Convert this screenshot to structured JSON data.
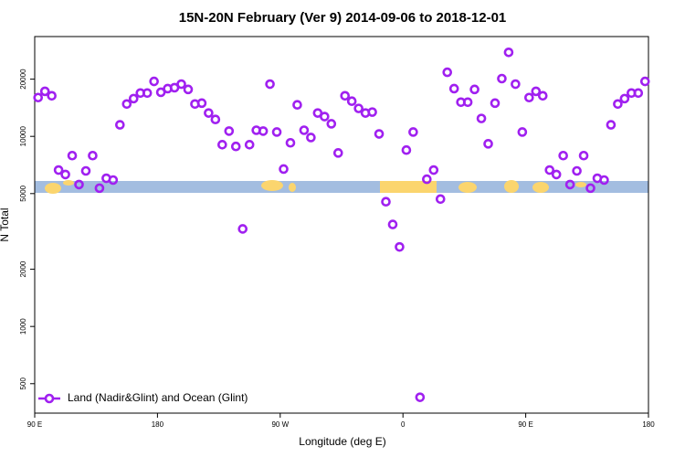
{
  "chart_data": {
    "type": "scatter",
    "title": "15N-20N February (Ver 9)   2014-09-06 to 2018-12-01",
    "x_label": "Longitude (deg E)",
    "y_label": "N Total",
    "xlim": [
      90,
      540
    ],
    "xticks": [
      {
        "value": 90,
        "label": "90 E"
      },
      {
        "value": 180,
        "label": "180"
      },
      {
        "value": 270,
        "label": "90 W"
      },
      {
        "value": 360,
        "label": "0"
      },
      {
        "value": 450,
        "label": "90 E"
      },
      {
        "value": 540,
        "label": "180"
      }
    ],
    "ylim": [
      350,
      33500
    ],
    "y_log": true,
    "yticks": [
      500,
      1000,
      2000,
      5000,
      10000,
      20000
    ],
    "legend_position": "bottom-left",
    "series": [
      {
        "name": "Land (Nadir&Glint) and Ocean (Glint)",
        "color": "#a020f0",
        "x": [
          92.5,
          97.5,
          102.5,
          107.5,
          112.5,
          117.5,
          122.5,
          127.5,
          132.5,
          137.5,
          142.5,
          147.5,
          152.5,
          157.5,
          162.5,
          167.5,
          172.5,
          177.5,
          182.5,
          187.5,
          192.5,
          197.5,
          202.5,
          207.5,
          212.5,
          217.5,
          222.5,
          227.5,
          232.5,
          237.5,
          242.5,
          247.5,
          252.5,
          257.5,
          262.5,
          267.5,
          272.5,
          277.5,
          282.5,
          287.5,
          292.5,
          297.5,
          302.5,
          307.5,
          312.5,
          317.5,
          322.5,
          327.5,
          332.5,
          337.5,
          342.5,
          347.5,
          352.5,
          357.5,
          362.5,
          367.5,
          372.5,
          377.5,
          382.5,
          387.5,
          392.5,
          397.5,
          402.5,
          407.5,
          412.5,
          417.5,
          422.5,
          427.5,
          432.5,
          437.5,
          442.5,
          447.5,
          452.5,
          457.5,
          462.5,
          467.5,
          472.5,
          477.5,
          482.5,
          487.5,
          492.5,
          497.5,
          502.5,
          507.5,
          512.5,
          517.5,
          522.5,
          527.5,
          532.5,
          537.5
        ],
        "values": [
          16000,
          17260,
          16350,
          6650,
          6300,
          7920,
          5580,
          6580,
          7920,
          5340,
          6020,
          5890,
          11500,
          14800,
          15800,
          16900,
          16900,
          19460,
          17060,
          17830,
          18030,
          18830,
          17660,
          14800,
          14960,
          13270,
          12270,
          9040,
          10660,
          8850,
          3260,
          9040,
          10770,
          10660,
          18830,
          10540,
          6730,
          9250,
          14650,
          10770,
          9860,
          13270,
          12710,
          11640,
          8180,
          16350,
          15310,
          14030,
          13270,
          13420,
          10300,
          4530,
          3440,
          2620,
          8470,
          10540,
          424,
          5950,
          6650,
          4680,
          21730,
          17830,
          15130,
          15130,
          17660,
          12420,
          9140,
          14960,
          20130,
          27670,
          18830,
          10540,
          16000,
          17260,
          16350,
          6650,
          6300,
          7920,
          5580,
          6580,
          7920,
          5340,
          6020,
          5890,
          11500,
          14800,
          15800,
          16900,
          16900,
          19460
        ]
      }
    ]
  }
}
